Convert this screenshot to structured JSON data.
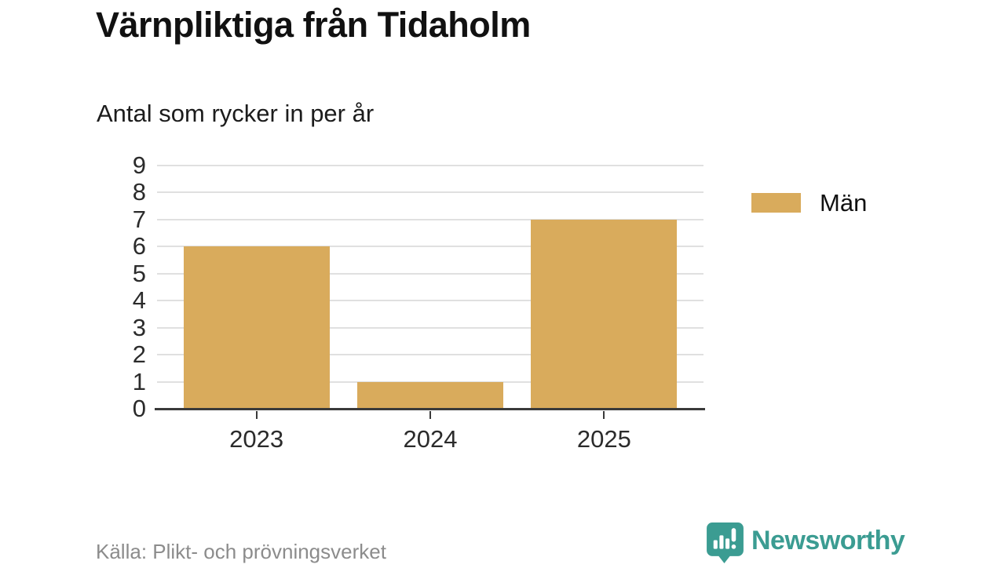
{
  "header": {
    "title": "Värnpliktiga från Tidaholm",
    "subtitle": "Antal som rycker in per år"
  },
  "chart_data": {
    "type": "bar",
    "title": "Värnpliktiga från Tidaholm",
    "subtitle": "Antal som rycker in per år",
    "categories": [
      "2023",
      "2024",
      "2025"
    ],
    "series": [
      {
        "name": "Män",
        "color": "#d9ab5c",
        "values": [
          6,
          1,
          7
        ]
      }
    ],
    "ylim": [
      0,
      9
    ],
    "yticks": [
      0,
      1,
      2,
      3,
      4,
      5,
      6,
      7,
      8,
      9
    ],
    "grid": true,
    "legend_position": "right",
    "source": "Källa: Plikt- och prövningsverket"
  },
  "legend": {
    "items": [
      {
        "label": "Män",
        "color": "#d9ab5c"
      }
    ]
  },
  "footer": {
    "source": "Källa: Plikt- och prövningsverket",
    "brand": "Newsworthy"
  },
  "icons": {
    "brand": "newsworthy-speech-bubble-barchart-icon"
  },
  "colors": {
    "bar": "#d9ab5c",
    "brand": "#3b9c92",
    "grid": "#e0e0e0",
    "axis": "#3a3a3a",
    "title_text": "#111111",
    "tick_text": "#2b2b2b",
    "source_text": "#8c8c8c"
  }
}
